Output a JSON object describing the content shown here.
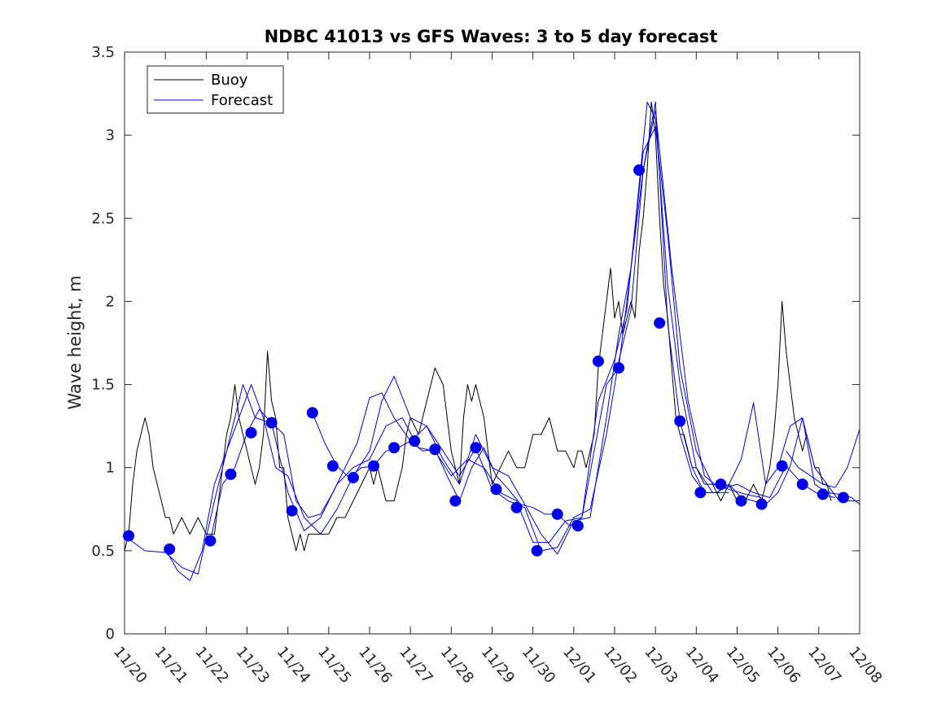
{
  "chart_data": {
    "type": "line",
    "title": "NDBC 41013 vs GFS Waves: 3 to 5 day forecast",
    "xlabel": "",
    "ylabel": "Wave height, m",
    "xlim": [
      0,
      18
    ],
    "ylim": [
      0,
      3.5
    ],
    "yticks": [
      0,
      0.5,
      1,
      1.5,
      2,
      2.5,
      3,
      3.5
    ],
    "ytick_labels": [
      "0",
      "0.5",
      "1",
      "1.5",
      "2",
      "2.5",
      "3",
      "3.5"
    ],
    "xticks": [
      0,
      1,
      2,
      3,
      4,
      5,
      6,
      7,
      8,
      9,
      10,
      11,
      12,
      13,
      14,
      15,
      16,
      17,
      18
    ],
    "xtick_labels": [
      "11/20",
      "11/21",
      "11/22",
      "11/23",
      "11/24",
      "11/25",
      "11/26",
      "11/27",
      "11/28",
      "11/29",
      "11/30",
      "12/01",
      "12/02",
      "12/03",
      "12/04",
      "12/05",
      "12/06",
      "12/07",
      "12/08"
    ],
    "legend": {
      "position": "top-left",
      "entries": [
        "Buoy",
        "Forecast"
      ]
    },
    "colors": {
      "buoy": "#000000",
      "forecast": "#0000e6",
      "axes": "#262626"
    },
    "series": [
      {
        "name": "Buoy",
        "color": "#000000",
        "x": [
          0,
          0.1,
          0.2,
          0.3,
          0.4,
          0.5,
          0.6,
          0.7,
          0.8,
          0.9,
          1.0,
          1.1,
          1.2,
          1.4,
          1.6,
          1.8,
          2.0,
          2.2,
          2.4,
          2.5,
          2.6,
          2.7,
          2.8,
          2.9,
          3.0,
          3.1,
          3.2,
          3.3,
          3.4,
          3.5,
          3.6,
          3.7,
          3.8,
          3.9,
          4.0,
          4.1,
          4.2,
          4.3,
          4.4,
          4.5,
          4.6,
          4.8,
          5.0,
          5.2,
          5.4,
          5.6,
          5.8,
          6.0,
          6.1,
          6.2,
          6.3,
          6.4,
          6.6,
          6.8,
          6.9,
          7.0,
          7.2,
          7.4,
          7.6,
          7.8,
          7.9,
          8.0,
          8.1,
          8.2,
          8.3,
          8.4,
          8.5,
          8.6,
          8.7,
          8.8,
          8.9,
          9.0,
          9.2,
          9.4,
          9.6,
          9.8,
          10.0,
          10.2,
          10.4,
          10.6,
          10.8,
          11.0,
          11.1,
          11.2,
          11.3,
          11.4,
          11.5,
          11.6,
          11.7,
          11.8,
          11.9,
          12.0,
          12.1,
          12.2,
          12.3,
          12.4,
          12.5,
          12.6,
          12.7,
          12.8,
          12.9,
          13.0,
          13.1,
          13.2,
          13.3,
          13.4,
          13.5,
          13.6,
          13.7,
          13.8,
          13.9,
          14.0,
          14.2,
          14.4,
          14.6,
          14.8,
          15.0,
          15.2,
          15.4,
          15.6,
          15.8,
          15.9,
          16.0,
          16.1,
          16.2,
          16.3,
          16.4,
          16.5,
          16.6,
          16.7,
          16.8,
          16.9,
          17.0,
          17.1,
          17.2,
          17.3
        ],
        "y": [
          0.5,
          0.6,
          0.9,
          1.1,
          1.2,
          1.3,
          1.2,
          1.0,
          0.9,
          0.8,
          0.7,
          0.7,
          0.6,
          0.7,
          0.6,
          0.7,
          0.6,
          0.6,
          1.0,
          1.2,
          1.3,
          1.5,
          1.3,
          1.2,
          1.1,
          1.0,
          0.9,
          1.0,
          1.2,
          1.7,
          1.4,
          1.3,
          1.0,
          1.0,
          0.7,
          0.6,
          0.5,
          0.6,
          0.5,
          0.6,
          0.6,
          0.6,
          0.6,
          0.7,
          0.7,
          0.8,
          0.9,
          1.0,
          0.9,
          1.0,
          0.9,
          0.8,
          0.8,
          1.0,
          1.2,
          1.3,
          1.2,
          1.4,
          1.6,
          1.5,
          1.3,
          1.1,
          1.0,
          0.9,
          1.3,
          1.5,
          1.4,
          1.5,
          1.4,
          1.3,
          1.1,
          0.9,
          1.0,
          1.1,
          1.0,
          1.0,
          1.2,
          1.2,
          1.3,
          1.1,
          1.1,
          1.0,
          1.1,
          1.1,
          1.0,
          1.1,
          1.2,
          1.6,
          1.8,
          2.0,
          2.2,
          1.9,
          2.0,
          1.8,
          1.9,
          2.0,
          1.9,
          2.3,
          2.5,
          2.8,
          3.2,
          3.0,
          2.5,
          2.1,
          1.9,
          1.6,
          1.3,
          1.2,
          1.2,
          1.1,
          1.0,
          1.0,
          0.9,
          0.9,
          0.8,
          0.9,
          0.8,
          0.8,
          0.9,
          0.8,
          1.0,
          1.2,
          1.5,
          2.0,
          1.7,
          1.5,
          1.3,
          1.2,
          1.1,
          1.2,
          1.1,
          1.0,
          1.0,
          0.9,
          0.9,
          0.8
        ]
      },
      {
        "name": "Forecast run 1",
        "color": "#0000e6",
        "x": [
          0,
          0.5,
          1.0,
          1.4,
          1.8,
          2.2,
          2.6,
          2.9,
          3.2,
          3.6,
          4.0,
          4.4,
          4.8,
          5.2,
          5.6,
          6.0,
          6.4,
          6.8,
          7.2,
          7.6,
          8.0,
          8.4,
          8.8,
          9.2,
          9.6,
          10.0,
          10.4,
          10.8,
          11.2,
          11.6,
          12.0,
          12.3,
          12.6,
          12.8,
          13.0,
          13.3,
          13.6,
          14.0,
          14.4,
          14.8
        ],
        "y": [
          0.59,
          0.5,
          0.49,
          0.4,
          0.36,
          0.8,
          1.2,
          1.5,
          1.3,
          1.27,
          0.85,
          0.62,
          0.7,
          0.9,
          1.0,
          1.05,
          1.25,
          1.3,
          1.12,
          1.1,
          0.95,
          1.05,
          1.0,
          0.85,
          0.8,
          0.55,
          0.55,
          0.68,
          0.7,
          1.4,
          1.65,
          1.95,
          2.7,
          3.2,
          3.1,
          2.1,
          1.5,
          1.0,
          0.85,
          0.85
        ]
      },
      {
        "name": "Forecast run 2",
        "color": "#0000e6",
        "x": [
          1.0,
          1.3,
          1.6,
          1.9,
          2.2,
          2.5,
          2.8,
          3.1,
          3.4,
          3.7,
          4.0,
          4.4,
          4.8,
          5.2,
          5.6,
          6.0,
          6.3,
          6.6,
          7.0,
          7.4,
          7.8,
          8.2,
          8.6,
          9.0,
          9.4,
          9.8,
          10.2,
          10.6,
          11.0,
          11.4,
          11.8,
          12.1,
          12.4,
          12.7,
          13.0,
          13.3,
          13.6,
          14.0,
          14.4,
          14.8,
          15.2,
          15.6
        ],
        "y": [
          0.51,
          0.38,
          0.32,
          0.5,
          0.9,
          1.1,
          1.3,
          1.5,
          1.3,
          1.0,
          0.95,
          0.7,
          0.6,
          0.75,
          0.95,
          1.1,
          1.4,
          1.55,
          1.3,
          1.25,
          1.05,
          0.9,
          1.2,
          1.0,
          0.95,
          0.78,
          0.6,
          0.48,
          0.68,
          0.7,
          1.3,
          1.8,
          2.2,
          2.9,
          3.05,
          2.4,
          1.6,
          1.1,
          0.9,
          0.87,
          0.84,
          0.82
        ]
      },
      {
        "name": "Forecast run 3",
        "color": "#0000e6",
        "x": [
          2.1,
          2.4,
          2.7,
          3.0,
          3.3,
          3.6,
          3.9,
          4.2,
          4.5,
          4.8,
          5.1,
          5.4,
          5.7,
          6.0,
          6.3,
          6.6,
          7.0,
          7.4,
          7.8,
          8.2,
          8.6,
          9.0,
          9.4,
          9.8,
          10.2,
          10.6,
          11.0,
          11.4,
          11.8,
          12.1,
          12.4,
          12.7,
          13.0,
          13.4,
          13.8,
          14.2,
          14.6,
          15.0,
          15.4,
          15.8,
          16.2,
          16.6,
          17.0,
          17.4
        ],
        "y": [
          0.56,
          0.9,
          1.0,
          1.21,
          1.35,
          1.27,
          1.2,
          0.8,
          0.7,
          0.72,
          0.85,
          1.0,
          1.15,
          1.42,
          1.45,
          1.3,
          1.16,
          1.25,
          1.1,
          0.95,
          1.12,
          0.87,
          0.8,
          0.76,
          0.5,
          0.52,
          0.7,
          0.75,
          1.2,
          1.64,
          1.95,
          2.79,
          3.15,
          2.2,
          1.4,
          0.95,
          0.87,
          0.9,
          0.85,
          0.82,
          1.01,
          0.9,
          0.84,
          0.82
        ]
      },
      {
        "name": "Forecast run 4",
        "color": "#0000e6",
        "x": [
          4.6,
          4.9,
          5.2,
          5.5,
          5.8,
          6.1,
          6.4,
          6.7,
          7.0,
          7.3,
          7.6,
          7.9,
          8.2,
          8.5,
          8.8,
          9.1,
          9.4,
          9.7,
          10.0,
          10.3,
          10.6,
          10.9,
          11.2,
          11.5,
          11.8,
          12.1,
          12.4,
          12.7,
          13.0,
          13.3,
          13.6,
          13.9,
          14.2,
          14.5,
          14.8,
          15.1,
          15.4,
          15.7,
          16.0,
          16.3,
          16.6,
          16.9,
          17.2,
          17.5,
          17.8,
          18.0
        ],
        "y": [
          1.33,
          1.15,
          1.01,
          0.94,
          1.0,
          1.01,
          1.1,
          1.12,
          1.16,
          1.1,
          1.11,
          0.95,
          0.8,
          1.0,
          1.12,
          0.95,
          0.87,
          0.78,
          0.76,
          0.72,
          0.72,
          0.65,
          0.7,
          1.1,
          1.5,
          1.6,
          2.2,
          2.79,
          3.2,
          1.87,
          1.28,
          1.0,
          0.85,
          0.85,
          0.9,
          0.82,
          0.8,
          0.78,
          0.85,
          1.01,
          1.3,
          0.9,
          0.85,
          0.84,
          0.82,
          0.78
        ]
      },
      {
        "name": "Forecast run 5",
        "color": "#0000e6",
        "x": [
          13.6,
          13.9,
          14.2,
          14.5,
          14.8,
          15.1,
          15.4,
          15.7,
          16.0,
          16.3,
          16.6,
          16.9,
          17.2,
          17.5,
          17.8,
          18.0
        ],
        "y": [
          1.2,
          0.95,
          0.85,
          0.85,
          0.9,
          1.05,
          1.39,
          0.9,
          1.0,
          1.25,
          1.3,
          1.0,
          0.9,
          0.8,
          0.8,
          0.8
        ]
      },
      {
        "name": "Forecast run 6",
        "color": "#0000e6",
        "x": [
          16.2,
          16.5,
          16.8,
          17.1,
          17.4,
          17.7,
          18.0
        ],
        "y": [
          1.1,
          1.0,
          0.95,
          0.9,
          0.88,
          1.0,
          1.23
        ]
      }
    ],
    "markers": {
      "name": "Forecast",
      "color": "#0000e6",
      "x": [
        0.1,
        1.1,
        2.1,
        2.6,
        3.1,
        3.6,
        4.1,
        4.6,
        5.1,
        5.6,
        6.1,
        6.6,
        7.1,
        7.6,
        8.1,
        8.6,
        9.1,
        9.6,
        10.1,
        10.6,
        11.1,
        11.6,
        12.1,
        12.6,
        13.1,
        13.6,
        14.1,
        14.6,
        15.1,
        15.6,
        16.1,
        16.6,
        17.1,
        17.6
      ],
      "y": [
        0.59,
        0.51,
        0.56,
        0.96,
        1.21,
        1.27,
        0.74,
        1.33,
        1.01,
        0.94,
        1.01,
        1.12,
        1.16,
        1.11,
        0.8,
        1.12,
        0.87,
        0.76,
        0.5,
        0.72,
        0.65,
        1.64,
        1.6,
        2.79,
        1.87,
        1.28,
        0.85,
        0.9,
        0.8,
        0.78,
        1.01,
        0.9,
        0.84,
        0.82
      ]
    }
  }
}
